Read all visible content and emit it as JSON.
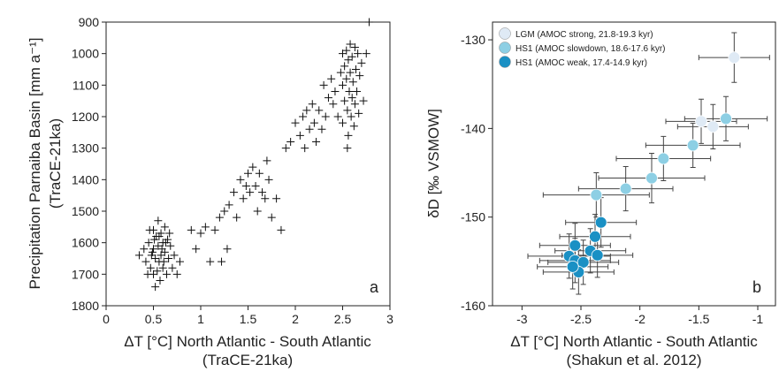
{
  "chart_data": [
    {
      "type": "scatter",
      "panel_label": "a",
      "xlabel": "ΔT [°C] North Atlantic - South Atlantic",
      "xlabel2": "(TraCE-21ka)",
      "ylabel": "Precipitation Parnaiba Basin [mm a⁻¹]",
      "ylabel2": "(TraCE-21ka)",
      "xlim": [
        0,
        3
      ],
      "ylim": [
        1800,
        900
      ],
      "y_inverted": true,
      "xticks": [
        "0",
        "0.5",
        "1",
        "1.5",
        "2",
        "2.5",
        "3"
      ],
      "yticks": [
        "900",
        "1000",
        "1100",
        "1200",
        "1300",
        "1400",
        "1500",
        "1600",
        "1700",
        "1800"
      ],
      "marker": "plus",
      "series": [
        {
          "points": [
            [
              0.35,
              1640
            ],
            [
              0.4,
              1620
            ],
            [
              0.42,
              1660
            ],
            [
              0.45,
              1600
            ],
            [
              0.47,
              1680
            ],
            [
              0.48,
              1640
            ],
            [
              0.5,
              1560
            ],
            [
              0.5,
              1620
            ],
            [
              0.5,
              1700
            ],
            [
              0.52,
              1650
            ],
            [
              0.53,
              1580
            ],
            [
              0.54,
              1690
            ],
            [
              0.55,
              1530
            ],
            [
              0.55,
              1610
            ],
            [
              0.56,
              1660
            ],
            [
              0.57,
              1720
            ],
            [
              0.58,
              1570
            ],
            [
              0.58,
              1640
            ],
            [
              0.6,
              1600
            ],
            [
              0.6,
              1680
            ],
            [
              0.62,
              1550
            ],
            [
              0.62,
              1630
            ],
            [
              0.64,
              1700
            ],
            [
              0.65,
              1590
            ],
            [
              0.66,
              1650
            ],
            [
              0.68,
              1610
            ],
            [
              0.7,
              1680
            ],
            [
              0.72,
              1640
            ],
            [
              0.75,
              1700
            ],
            [
              0.78,
              1660
            ],
            [
              0.44,
              1700
            ],
            [
              0.46,
              1560
            ],
            [
              0.52,
              1740
            ],
            [
              0.56,
              1580
            ],
            [
              0.59,
              1620
            ],
            [
              0.61,
              1660
            ],
            [
              0.63,
              1600
            ],
            [
              0.67,
              1570
            ],
            [
              0.49,
              1630
            ],
            [
              0.51,
              1590
            ],
            [
              0.9,
              1560
            ],
            [
              0.95,
              1620
            ],
            [
              1.0,
              1570
            ],
            [
              1.05,
              1550
            ],
            [
              1.1,
              1660
            ],
            [
              1.15,
              1560
            ],
            [
              1.2,
              1520
            ],
            [
              1.25,
              1500
            ],
            [
              1.22,
              1660
            ],
            [
              1.28,
              1620
            ],
            [
              1.3,
              1480
            ],
            [
              1.35,
              1440
            ],
            [
              1.38,
              1520
            ],
            [
              1.42,
              1400
            ],
            [
              1.45,
              1460
            ],
            [
              1.48,
              1420
            ],
            [
              1.5,
              1380
            ],
            [
              1.52,
              1440
            ],
            [
              1.55,
              1360
            ],
            [
              1.58,
              1420
            ],
            [
              1.6,
              1500
            ],
            [
              1.62,
              1380
            ],
            [
              1.65,
              1440
            ],
            [
              1.68,
              1460
            ],
            [
              1.7,
              1340
            ],
            [
              1.72,
              1400
            ],
            [
              1.75,
              1520
            ],
            [
              1.8,
              1460
            ],
            [
              1.85,
              1560
            ],
            [
              1.9,
              1300
            ],
            [
              1.95,
              1280
            ],
            [
              2.0,
              1220
            ],
            [
              2.05,
              1260
            ],
            [
              2.08,
              1200
            ],
            [
              2.1,
              1300
            ],
            [
              2.12,
              1180
            ],
            [
              2.15,
              1240
            ],
            [
              2.18,
              1160
            ],
            [
              2.2,
              1220
            ],
            [
              2.22,
              1280
            ],
            [
              2.25,
              1180
            ],
            [
              2.28,
              1240
            ],
            [
              2.3,
              1100
            ],
            [
              2.32,
              1200
            ],
            [
              2.35,
              1140
            ],
            [
              2.38,
              1080
            ],
            [
              2.4,
              1160
            ],
            [
              2.42,
              1120
            ],
            [
              2.45,
              1200
            ],
            [
              2.48,
              1060
            ],
            [
              2.5,
              1000
            ],
            [
              2.5,
              1100
            ],
            [
              2.5,
              1220
            ],
            [
              2.52,
              1040
            ],
            [
              2.52,
              1150
            ],
            [
              2.54,
              990
            ],
            [
              2.54,
              1080
            ],
            [
              2.55,
              1180
            ],
            [
              2.56,
              1020
            ],
            [
              2.56,
              1260
            ],
            [
              2.57,
              1120
            ],
            [
              2.58,
              970
            ],
            [
              2.58,
              1060
            ],
            [
              2.59,
              1200
            ],
            [
              2.6,
              1010
            ],
            [
              2.6,
              1140
            ],
            [
              2.61,
              1090
            ],
            [
              2.62,
              1230
            ],
            [
              2.63,
              980
            ],
            [
              2.63,
              1160
            ],
            [
              2.64,
              1050
            ],
            [
              2.65,
              1120
            ],
            [
              2.66,
              1000
            ],
            [
              2.67,
              1190
            ],
            [
              2.68,
              1070
            ],
            [
              2.7,
              1030
            ],
            [
              2.72,
              1150
            ],
            [
              2.75,
              1000
            ],
            [
              2.78,
              900
            ],
            [
              2.55,
              1300
            ]
          ]
        }
      ]
    },
    {
      "type": "scatter",
      "panel_label": "b",
      "xlabel": "ΔT [°C] North Atlantic - South Atlantic",
      "xlabel2": "(Shakun et al. 2012)",
      "ylabel": "δD [‰ VSMOW]",
      "xlim": [
        -3.25,
        -0.85
      ],
      "ylim": [
        -160,
        -128
      ],
      "xticks": [
        "-3",
        "-2.5",
        "-2",
        "-1.5",
        "-1"
      ],
      "yticks": [
        "-130",
        "-140",
        "-150",
        "-160"
      ],
      "legend_position": "top-left",
      "error_bars": true,
      "series": [
        {
          "name": "LGM (AMOC strong, 21.8-19.3 kyr)",
          "color": "#dfeaf5",
          "points": [
            {
              "x": -1.2,
              "y": -132,
              "xerr": 0.3,
              "yerr": 2.8
            },
            {
              "x": -1.48,
              "y": -139.2,
              "xerr": 0.3,
              "yerr": 2.5
            },
            {
              "x": -1.38,
              "y": -139.8,
              "xerr": 0.3,
              "yerr": 2.5
            }
          ]
        },
        {
          "name": "HS1 (AMOC slowdown, 18.6-17.6 kyr)",
          "color": "#8dcfe4",
          "points": [
            {
              "x": -1.27,
              "y": -138.9,
              "xerr": 0.35,
              "yerr": 2.5
            },
            {
              "x": -1.55,
              "y": -141.9,
              "xerr": 0.4,
              "yerr": 2.5
            },
            {
              "x": -1.8,
              "y": -143.4,
              "xerr": 0.4,
              "yerr": 2.5
            },
            {
              "x": -1.9,
              "y": -145.6,
              "xerr": 0.45,
              "yerr": 2.8
            },
            {
              "x": -2.12,
              "y": -146.8,
              "xerr": 0.4,
              "yerr": 2.5
            },
            {
              "x": -2.37,
              "y": -147.5,
              "xerr": 0.45,
              "yerr": 2.5
            }
          ]
        },
        {
          "name": "HS1 (AMOC weak, 17.4-14.9 kyr)",
          "color": "#1a90c4",
          "points": [
            {
              "x": -2.33,
              "y": -150.6,
              "xerr": 0.3,
              "yerr": 2.8
            },
            {
              "x": -2.38,
              "y": -152.2,
              "xerr": 0.3,
              "yerr": 2.5
            },
            {
              "x": -2.42,
              "y": -153.8,
              "xerr": 0.3,
              "yerr": 2.5
            },
            {
              "x": -2.36,
              "y": -154.3,
              "xerr": 0.3,
              "yerr": 2.5
            },
            {
              "x": -2.55,
              "y": -153.2,
              "xerr": 0.3,
              "yerr": 2.5
            },
            {
              "x": -2.6,
              "y": -154.4,
              "xerr": 0.35,
              "yerr": 2.5
            },
            {
              "x": -2.55,
              "y": -154.9,
              "xerr": 0.3,
              "yerr": 2.5
            },
            {
              "x": -2.48,
              "y": -155.1,
              "xerr": 0.3,
              "yerr": 2.5
            },
            {
              "x": -2.52,
              "y": -156.2,
              "xerr": 0.3,
              "yerr": 2.5
            },
            {
              "x": -2.57,
              "y": -155.6,
              "xerr": 0.3,
              "yerr": 2.5
            }
          ]
        }
      ]
    }
  ]
}
